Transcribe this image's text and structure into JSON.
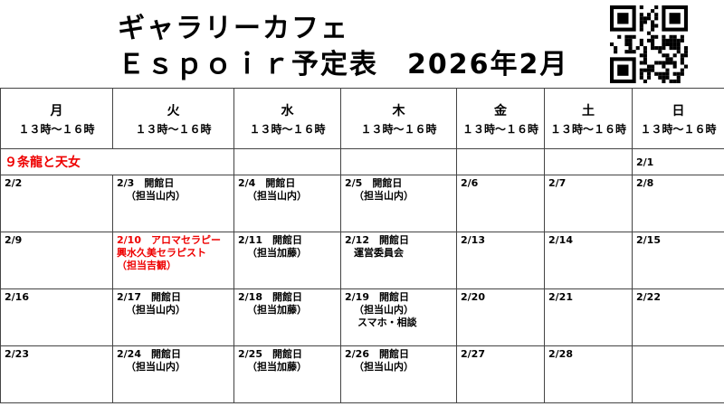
{
  "title_line1": "ギャラリーカフェ",
  "title_line2": "Ｅｓｐｏｉｒ予定表　2026年2月",
  "days": [
    {
      "name": "月",
      "hours": "１３時～１６時"
    },
    {
      "name": "火",
      "hours": "１３時～１６時"
    },
    {
      "name": "水",
      "hours": "１３時～１６時"
    },
    {
      "name": "木",
      "hours": "１３時～１６時"
    },
    {
      "name": "金",
      "hours": "１３時～１６時"
    },
    {
      "name": "土",
      "hours": "１３時～１６時"
    },
    {
      "name": "日",
      "hours": "１３時～１６時"
    }
  ],
  "banner": "９条龍と天女",
  "first_sun": "2/1",
  "weeks": [
    [
      {
        "d": "2/2"
      },
      {
        "d": "2/3　開館日",
        "l2": "（担当山内）"
      },
      {
        "d": "2/4　開館日",
        "l2": "（担当山内）"
      },
      {
        "d": "2/5　開館日",
        "l2": "（担当山内）"
      },
      {
        "d": "2/6"
      },
      {
        "d": "2/7"
      },
      {
        "d": "2/8"
      }
    ],
    [
      {
        "d": "2/9"
      },
      {
        "d": "2/10　アロマセラピー",
        "l2": "興水久美セラピスト",
        "l3": "（担当吉観）",
        "red": true
      },
      {
        "d": "2/11　開館日",
        "l2": "（担当加藤）"
      },
      {
        "d": "2/12　開館日",
        "l2": "運営委員会"
      },
      {
        "d": "2/13"
      },
      {
        "d": "2/14"
      },
      {
        "d": "2/15"
      }
    ],
    [
      {
        "d": "2/16"
      },
      {
        "d": "2/17　開館日",
        "l2": "（担当山内）"
      },
      {
        "d": "2/18　開館日",
        "l2": "（担当加藤）"
      },
      {
        "d": "2/19　開館日",
        "l2": "（担当山内）",
        "l3": "スマホ・相談"
      },
      {
        "d": "2/20"
      },
      {
        "d": "2/21"
      },
      {
        "d": "2/22"
      }
    ],
    [
      {
        "d": "2/23"
      },
      {
        "d": "2/24　開館日",
        "l2": "（担当山内）"
      },
      {
        "d": "2/25　開館日",
        "l2": "（担当加藤）"
      },
      {
        "d": "2/26　開館日",
        "l2": "（担当山内）"
      },
      {
        "d": "2/27"
      },
      {
        "d": "2/28"
      },
      {
        "d": ""
      }
    ]
  ],
  "colors": {
    "event": "#ee0000",
    "text": "#000000"
  }
}
